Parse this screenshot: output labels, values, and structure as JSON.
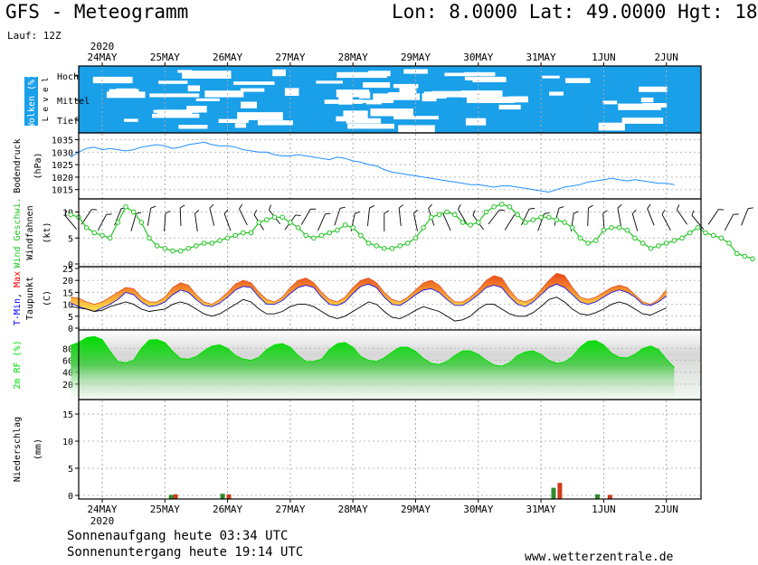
{
  "header": {
    "title": "GFS - Meteogramm",
    "coords": "Lon: 8.0000  Lat: 49.0000  Hgt: 18",
    "lauf": "Lauf: 12Z"
  },
  "footer": {
    "sunrise": "Sonnenaufgang heute 03:34 UTC",
    "sunset": "Sonnenuntergang heute 19:14 UTC",
    "site": "www.wetterzentrale.de"
  },
  "colors": {
    "cloud_blue": "#1a9fe9",
    "pressure_line": "#1e90ff",
    "wind_green": "#22c422",
    "tmin_blue": "#0000ff",
    "tmax_red": "#ff0000",
    "tmax_fill_top": "#e84a1a",
    "tmax_fill_bottom": "#ffe14a",
    "rh_green": "#00dd00",
    "precip_green": "#2e8b2e",
    "precip_red": "#cc3b1a"
  },
  "chart_data": [
    {
      "type": "heatmap",
      "panel": "clouds",
      "ylabel": "Wolken (%)",
      "ylabel2": "L e v e l",
      "levels": [
        "Hoch",
        "Mittel",
        "Tief"
      ],
      "x_categories": [
        "24MAY",
        "25MAY",
        "26MAY",
        "27MAY",
        "28MAY",
        "29MAY",
        "30MAY",
        "31MAY",
        "1JUN",
        "2JUN"
      ],
      "year": "2020"
    },
    {
      "type": "line",
      "panel": "pressure",
      "ylabel": "Bodendruck",
      "unit": "(hPa)",
      "ylim": [
        1012,
        1037
      ],
      "yticks": [
        1015,
        1020,
        1025,
        1030,
        1035
      ],
      "x_day_start": 0.0,
      "x_day_step": 0.125,
      "values": [
        1028,
        1030,
        1031.5,
        1032,
        1031,
        1031.5,
        1031,
        1030.5,
        1031,
        1032,
        1032.5,
        1033,
        1032.5,
        1031.5,
        1032,
        1033,
        1033.5,
        1034,
        1033,
        1032.5,
        1032.5,
        1032,
        1031,
        1030.5,
        1030,
        1030,
        1029,
        1028.5,
        1028.5,
        1029,
        1028.5,
        1028,
        1027.5,
        1027,
        1028,
        1027.5,
        1026.5,
        1026,
        1025,
        1024.5,
        1023,
        1022,
        1021.5,
        1021,
        1020.5,
        1020,
        1019.5,
        1019,
        1018.5,
        1018,
        1017.5,
        1017,
        1017,
        1016.5,
        1016,
        1016.5,
        1016.5,
        1016,
        1015.5,
        1015,
        1014.5,
        1014,
        1015,
        1016,
        1016.5,
        1017,
        1018,
        1018.5,
        1019,
        1019.5,
        1019,
        1018.5,
        1019,
        1018.5,
        1018,
        1017.5,
        1017.5,
        1017
      ]
    },
    {
      "type": "line",
      "panel": "wind",
      "ylabel": "Wind Geschwi.",
      "ylabel2": "Windfahnen",
      "unit": "(kt)",
      "ylim": [
        0,
        12
      ],
      "yticks": [
        0,
        5,
        10
      ],
      "x_day_start": 0.0,
      "x_day_step": 0.125,
      "series": [
        {
          "name": "Wind Geschwi.",
          "values": [
            9.5,
            9,
            7,
            6,
            5.5,
            5,
            8,
            11,
            10,
            8,
            5,
            3.5,
            3,
            2.5,
            2.5,
            3,
            3.5,
            4,
            4,
            4.5,
            5,
            5.5,
            6,
            6,
            8,
            8.5,
            9,
            9,
            8,
            7,
            5.5,
            5,
            5.5,
            6,
            6.5,
            7.5,
            7,
            5.5,
            4,
            3.5,
            3,
            3,
            3.5,
            4,
            5,
            7,
            9,
            9.5,
            10,
            9.5,
            8,
            7.5,
            8,
            10,
            11,
            11.5,
            11,
            9.5,
            8,
            8.5,
            9,
            9,
            8.5,
            8,
            7,
            5,
            4,
            4.5,
            6.5,
            7,
            7,
            6.5,
            5,
            4,
            3,
            3.5,
            4,
            4.5,
            5,
            6,
            7,
            6,
            5.5,
            5,
            4,
            2,
            1.5,
            1
          ]
        }
      ]
    },
    {
      "type": "line",
      "panel": "temperature",
      "ylabel": "T-Min, Max",
      "ylabel2": "Taupunkt",
      "unit": "(C)",
      "ylim": [
        0,
        25
      ],
      "yticks": [
        0,
        5,
        10,
        15,
        20,
        25
      ],
      "x_day_start": 0.0,
      "x_day_step": 0.125,
      "series": [
        {
          "name": "T-Min",
          "values": [
            10.5,
            9,
            8,
            7,
            8.5,
            10,
            12,
            15,
            14,
            11,
            9,
            9.5,
            11,
            14,
            16,
            15,
            12,
            9.5,
            9,
            10.5,
            13,
            16,
            17.5,
            17,
            13,
            10,
            10,
            11.5,
            14.5,
            17,
            18,
            17,
            13,
            10,
            9.5,
            11,
            14.5,
            17.5,
            18.5,
            17,
            13,
            10,
            9.5,
            11.5,
            14,
            16,
            16.5,
            15,
            12,
            9.5,
            9.5,
            11.5,
            14,
            17,
            18,
            17,
            13,
            10,
            9,
            11,
            14,
            17,
            18.5,
            17,
            14,
            11,
            10,
            11,
            13,
            15,
            16,
            15,
            13,
            10,
            9.5,
            11,
            13.5
          ]
        },
        {
          "name": "Max",
          "values": [
            13,
            12.5,
            11,
            10,
            11,
            13,
            15,
            17,
            16.5,
            13,
            11,
            11,
            13,
            17,
            19,
            18,
            14,
            11,
            10,
            12,
            15,
            18.5,
            20,
            19,
            15,
            12,
            11,
            13,
            17,
            20,
            21,
            19,
            15,
            12,
            11,
            13,
            17,
            20,
            21,
            19,
            15,
            12,
            11,
            13,
            16,
            19,
            20,
            18,
            14,
            11,
            11,
            13,
            16,
            20,
            22,
            21,
            16,
            12,
            11,
            12.5,
            16,
            20,
            23,
            22,
            17,
            13,
            12,
            13,
            15,
            17,
            18,
            17,
            14,
            11,
            10,
            12,
            16
          ]
        },
        {
          "name": "Taupunkt",
          "values": [
            9,
            8.5,
            8,
            7,
            7.5,
            9,
            10,
            11,
            10,
            8,
            7,
            7.5,
            8,
            10,
            11,
            10,
            8,
            6,
            5,
            6,
            8,
            10,
            12,
            11,
            8,
            6,
            6,
            7,
            9,
            10,
            10,
            9,
            7,
            5,
            4,
            5,
            7,
            9,
            11,
            10,
            7,
            4.5,
            4,
            5.5,
            7.5,
            9,
            8,
            7,
            5,
            3,
            3.5,
            5,
            8,
            10,
            10,
            8,
            6,
            5,
            5,
            6.5,
            9,
            12,
            13,
            11,
            8,
            6,
            5.5,
            6.5,
            8,
            10,
            11,
            10,
            8,
            6,
            5.5,
            7,
            8.5
          ]
        }
      ]
    },
    {
      "type": "area",
      "panel": "humidity",
      "ylabel": "2m RF (%)",
      "ylim": [
        0,
        105
      ],
      "yticks": [
        20,
        40,
        60,
        80
      ],
      "x_day_start": 0.0,
      "x_day_step": 0.125,
      "values": [
        85,
        90,
        98,
        100,
        95,
        75,
        58,
        56,
        60,
        80,
        94,
        95,
        90,
        75,
        63,
        62,
        66,
        76,
        84,
        86,
        80,
        68,
        62,
        60,
        65,
        78,
        86,
        88,
        82,
        68,
        58,
        58,
        62,
        78,
        88,
        90,
        82,
        66,
        60,
        58,
        64,
        74,
        82,
        82,
        75,
        63,
        55,
        53,
        58,
        68,
        76,
        76,
        70,
        60,
        52,
        50,
        56,
        68,
        74,
        76,
        70,
        60,
        55,
        57,
        66,
        82,
        92,
        93,
        86,
        72,
        65,
        64,
        70,
        80,
        84,
        78,
        62,
        48
      ]
    },
    {
      "type": "bar",
      "panel": "precipitation",
      "ylabel": "Niederschlag",
      "unit": "(mm)",
      "ylim": [
        0,
        17
      ],
      "yticks": [
        0,
        5,
        10,
        15
      ],
      "series": [
        {
          "name": "green",
          "x": [
            1.6,
            2.42,
            7.7,
            8.4
          ],
          "values": [
            0.1,
            0.3,
            1.4,
            0.2
          ]
        },
        {
          "name": "red",
          "x": [
            1.67,
            2.52,
            7.8,
            8.6
          ],
          "values": [
            0.2,
            0.2,
            2.3,
            0.1
          ]
        }
      ]
    }
  ],
  "x_axis": {
    "year_label": "2020",
    "days": [
      "24MAY",
      "25MAY",
      "26MAY",
      "27MAY",
      "28MAY",
      "29MAY",
      "30MAY",
      "31MAY",
      "1JUN",
      "2JUN"
    ]
  }
}
